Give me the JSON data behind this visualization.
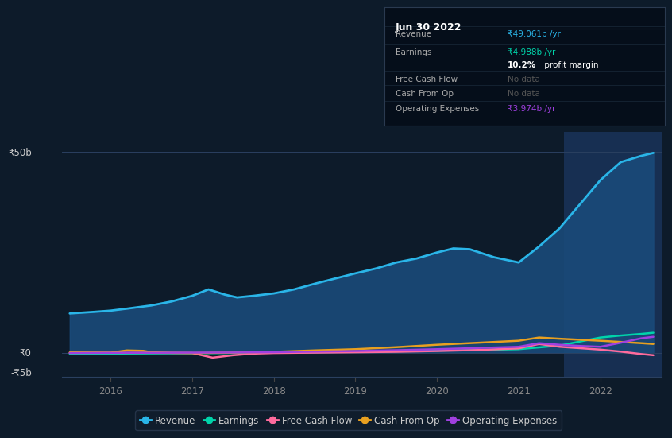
{
  "bg_color": "#0d1b2a",
  "plot_bg_color": "#0d1b2a",
  "grid_color": "#1e3050",
  "ylim": [
    -6000000000.0,
    55000000000.0
  ],
  "xlim": [
    2015.4,
    2022.75
  ],
  "xticks": [
    2016,
    2017,
    2018,
    2019,
    2020,
    2021,
    2022
  ],
  "highlight_x_start": 2021.55,
  "highlight_x_end": 2022.75,
  "y_zero": 0,
  "y_50b": 50000000000.0,
  "y_neg5b": -5000000000.0,
  "revenue": {
    "x": [
      2015.5,
      2015.65,
      2015.8,
      2016.0,
      2016.2,
      2016.5,
      2016.75,
      2017.0,
      2017.2,
      2017.4,
      2017.55,
      2017.75,
      2018.0,
      2018.25,
      2018.5,
      2018.75,
      2019.0,
      2019.25,
      2019.5,
      2019.75,
      2020.0,
      2020.2,
      2020.4,
      2020.7,
      2021.0,
      2021.25,
      2021.5,
      2021.75,
      2022.0,
      2022.25,
      2022.5,
      2022.65
    ],
    "y": [
      9800000000.0,
      10000000000.0,
      10200000000.0,
      10500000000.0,
      11000000000.0,
      11800000000.0,
      12800000000.0,
      14200000000.0,
      15800000000.0,
      14500000000.0,
      13800000000.0,
      14200000000.0,
      14800000000.0,
      15800000000.0,
      17200000000.0,
      18500000000.0,
      19800000000.0,
      21000000000.0,
      22500000000.0,
      23500000000.0,
      25000000000.0,
      26000000000.0,
      25800000000.0,
      23800000000.0,
      22500000000.0,
      26500000000.0,
      31000000000.0,
      37000000000.0,
      43000000000.0,
      47500000000.0,
      49061000000.0,
      49800000000.0
    ],
    "color": "#2ab5e8",
    "fill_color": "#1a4a7a",
    "fill_alpha": 0.85,
    "linewidth": 2.0
  },
  "earnings": {
    "x": [
      2015.5,
      2016.0,
      2016.5,
      2017.0,
      2017.5,
      2018.0,
      2018.5,
      2019.0,
      2019.5,
      2020.0,
      2020.5,
      2021.0,
      2021.5,
      2021.75,
      2022.0,
      2022.25,
      2022.5,
      2022.65
    ],
    "y": [
      -250000000.0,
      -200000000.0,
      -150000000.0,
      -100000000.0,
      -50000000.0,
      50000000.0,
      150000000.0,
      250000000.0,
      400000000.0,
      550000000.0,
      700000000.0,
      900000000.0,
      1800000000.0,
      2800000000.0,
      3800000000.0,
      4300000000.0,
      4700000000.0,
      4988000000.0
    ],
    "color": "#00d4aa",
    "linewidth": 1.8
  },
  "free_cash_flow": {
    "x": [
      2015.5,
      2016.0,
      2016.5,
      2017.0,
      2017.25,
      2017.5,
      2017.75,
      2018.0,
      2018.5,
      2019.0,
      2019.5,
      2020.0,
      2020.5,
      2021.0,
      2021.25,
      2021.5,
      2022.0,
      2022.25,
      2022.5,
      2022.65
    ],
    "y": [
      0.0,
      0.0,
      0.0,
      -50000000.0,
      -1200000000.0,
      -600000000.0,
      -200000000.0,
      -50000000.0,
      50000000.0,
      150000000.0,
      250000000.0,
      450000000.0,
      700000000.0,
      1100000000.0,
      2200000000.0,
      1500000000.0,
      800000000.0,
      300000000.0,
      -300000000.0,
      -600000000.0
    ],
    "color": "#ff6b9d",
    "linewidth": 1.8
  },
  "cash_from_op": {
    "x": [
      2015.5,
      2016.0,
      2016.2,
      2016.4,
      2016.5,
      2016.75,
      2017.0,
      2017.5,
      2018.0,
      2018.5,
      2019.0,
      2019.5,
      2020.0,
      2020.5,
      2021.0,
      2021.25,
      2021.5,
      2022.0,
      2022.25,
      2022.5,
      2022.65
    ],
    "y": [
      100000000.0,
      50000000.0,
      600000000.0,
      500000000.0,
      150000000.0,
      0.0,
      -50000000.0,
      50000000.0,
      250000000.0,
      600000000.0,
      900000000.0,
      1400000000.0,
      2000000000.0,
      2500000000.0,
      3000000000.0,
      3800000000.0,
      3500000000.0,
      3000000000.0,
      2700000000.0,
      2400000000.0,
      2200000000.0
    ],
    "color": "#e8a020",
    "linewidth": 1.8
  },
  "operating_expenses": {
    "x": [
      2015.5,
      2016.0,
      2016.5,
      2017.0,
      2017.5,
      2018.0,
      2018.5,
      2019.0,
      2019.5,
      2020.0,
      2020.5,
      2021.0,
      2021.25,
      2021.5,
      2021.75,
      2022.0,
      2022.25,
      2022.5,
      2022.65
    ],
    "y": [
      -50000000.0,
      0.0,
      20000000.0,
      50000000.0,
      80000000.0,
      150000000.0,
      300000000.0,
      450000000.0,
      650000000.0,
      900000000.0,
      1200000000.0,
      1500000000.0,
      2400000000.0,
      2000000000.0,
      1700000000.0,
      1500000000.0,
      2500000000.0,
      3600000000.0,
      3974000000.0
    ],
    "color": "#a040e0",
    "linewidth": 1.8
  },
  "legend_items": [
    {
      "label": "Revenue",
      "color": "#2ab5e8"
    },
    {
      "label": "Earnings",
      "color": "#00d4aa"
    },
    {
      "label": "Free Cash Flow",
      "color": "#ff6b9d"
    },
    {
      "label": "Cash From Op",
      "color": "#e8a020"
    },
    {
      "label": "Operating Expenses",
      "color": "#a040e0"
    }
  ],
  "tooltip": {
    "title": "Jun 30 2022",
    "rows": [
      {
        "label": "Revenue",
        "value": "₹49.061b /yr",
        "value_color": "#2ab5e8",
        "nodata": false
      },
      {
        "label": "Earnings",
        "value": "₹4.988b /yr",
        "value_color": "#00d4aa",
        "nodata": false
      },
      {
        "label": "",
        "value": "10.2% profit margin",
        "value_color": "#ffffff",
        "nodata": false
      },
      {
        "label": "Free Cash Flow",
        "value": "No data",
        "value_color": "#555555",
        "nodata": true
      },
      {
        "label": "Cash From Op",
        "value": "No data",
        "value_color": "#555555",
        "nodata": true
      },
      {
        "label": "Operating Expenses",
        "value": "₹3.974b /yr",
        "value_color": "#a040e0",
        "nodata": false
      }
    ],
    "bg_color": "#050e1a",
    "border_color": "#2a3a50",
    "text_color": "#aaaaaa",
    "title_color": "#ffffff"
  }
}
